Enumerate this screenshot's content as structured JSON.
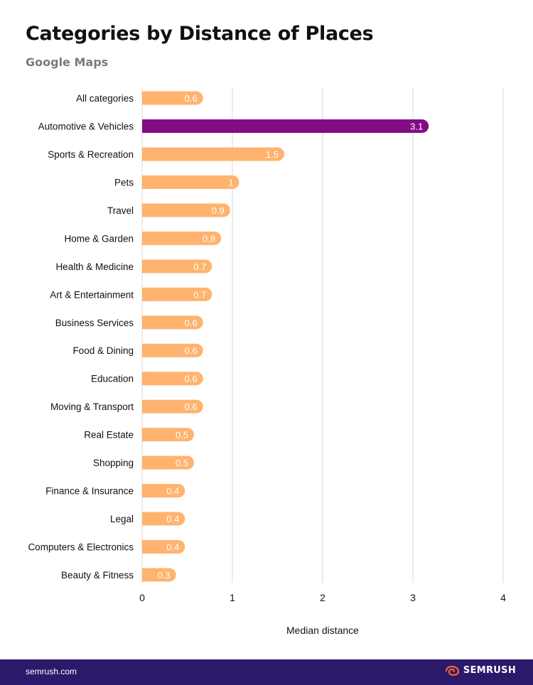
{
  "header": {
    "title": "Categories by Distance of Places",
    "subtitle": "Google Maps"
  },
  "footer": {
    "url": "semrush.com",
    "logo_text": "SEMRUSH",
    "logo_icon": "semrush-fire-icon"
  },
  "colors": {
    "bar_default": "#ffb36e",
    "bar_highlight": "#830c84",
    "footer_bg": "#2b1a6b",
    "gridline": "#e6e6e6",
    "logo_accent": "#ff642d"
  },
  "chart_data": {
    "type": "bar",
    "orientation": "horizontal",
    "categories": [
      "All categories",
      "Automotive & Vehicles",
      "Sports & Recreation",
      "Pets",
      "Travel",
      "Home & Garden",
      "Health & Medicine",
      "Art & Entertainment",
      "Business Services",
      "Food & Dining",
      "Education",
      "Moving & Transport",
      "Real Estate",
      "Shopping",
      "Finance & Insurance",
      "Legal",
      "Computers & Electronics",
      "Beauty & Fitness"
    ],
    "values": [
      0.6,
      3.1,
      1.5,
      1,
      0.9,
      0.8,
      0.7,
      0.7,
      0.6,
      0.6,
      0.6,
      0.6,
      0.5,
      0.5,
      0.4,
      0.4,
      0.4,
      0.3
    ],
    "value_labels": [
      "0.6",
      "3.1",
      "1.5",
      "1",
      "0.9",
      "0.8",
      "0.7",
      "0.7",
      "0.6",
      "0.6",
      "0.6",
      "0.6",
      "0.5",
      "0.5",
      "0.4",
      "0.4",
      "0.4",
      "0.3"
    ],
    "highlight_index": 1,
    "xlabel": "Median distance",
    "ylabel": "",
    "xlim": [
      0,
      4
    ],
    "xticks": [
      "0",
      "1",
      "2",
      "3",
      "4"
    ],
    "grid": true,
    "legend": "none"
  }
}
